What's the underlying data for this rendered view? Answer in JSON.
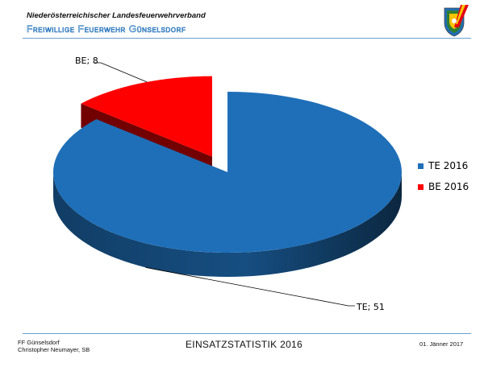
{
  "header": {
    "organization": "Niederösterreichischer Landesfeuerwehrverband",
    "department": "Freiwillige Feuerwehr Günselsdorf"
  },
  "logo": {
    "icon": "fire-brigade-crest-icon",
    "colors": [
      "#e30613",
      "#f5c400",
      "#2e7d32",
      "#1f6fb8"
    ]
  },
  "chart_data": {
    "type": "pie",
    "style": "3d-exploded",
    "series": [
      {
        "label": "TE",
        "data_label": "TE; 51",
        "legend": "TE 2016",
        "value": 51,
        "color": "#1f6fb8"
      },
      {
        "label": "BE",
        "data_label": "BE; 8",
        "legend": "BE 2016",
        "value": 8,
        "color": "#ff0000"
      }
    ],
    "legend_position": "right"
  },
  "footer": {
    "line1": "FF Günselsdorf",
    "line2": "Christopher  Neumayer,  SB",
    "title": "EINSATZSTATISTIK 2016",
    "date": "01. Jänner 2017"
  }
}
